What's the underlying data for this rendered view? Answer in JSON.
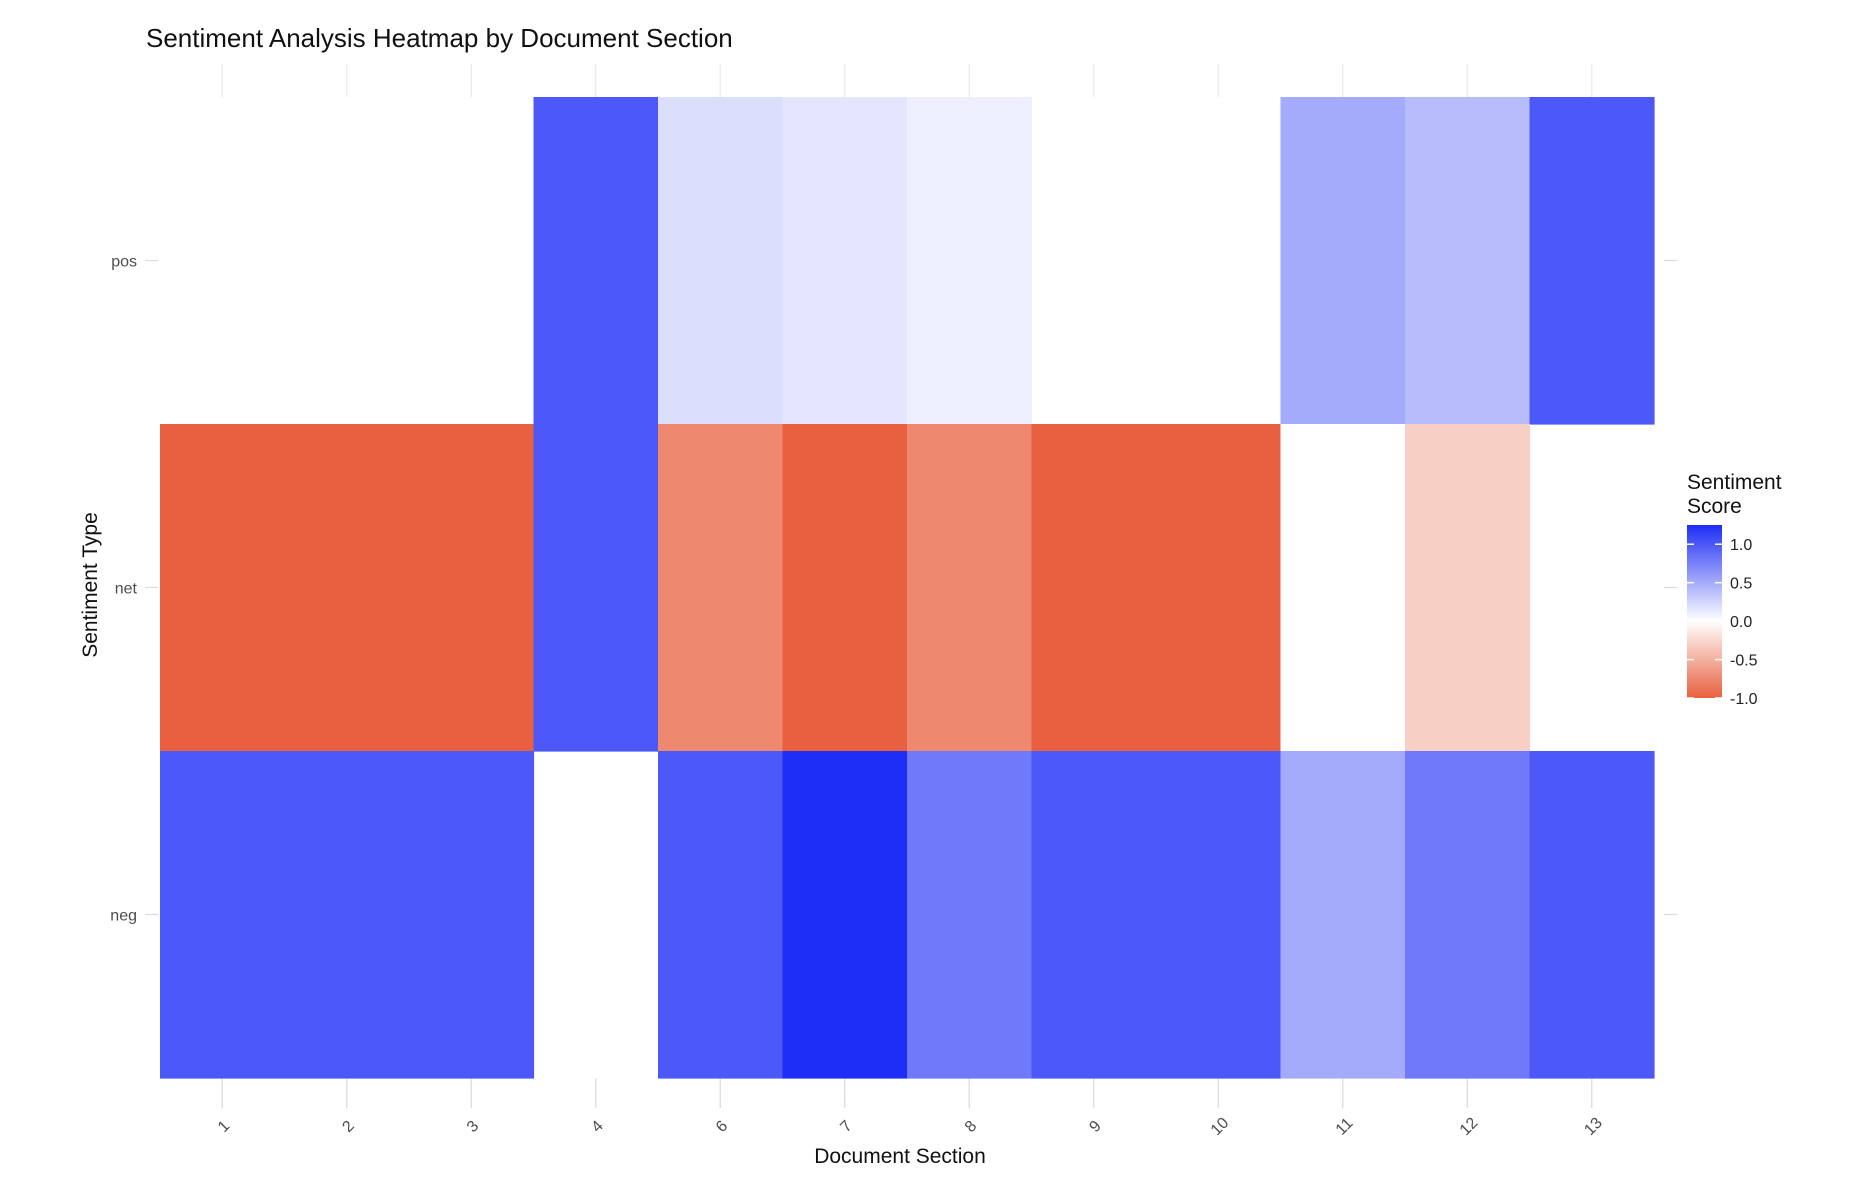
{
  "chart_data": {
    "type": "heatmap",
    "title": "Sentiment Analysis Heatmap by Document Section",
    "xlabel": "Document Section",
    "ylabel": "Sentiment Type",
    "x_categories": [
      "1",
      "2",
      "3",
      "4",
      "6",
      "7",
      "8",
      "9",
      "10",
      "11",
      "12",
      "13"
    ],
    "y_categories": [
      "pos",
      "net",
      "neg"
    ],
    "values": {
      "pos": [
        null,
        null,
        null,
        1.0,
        0.2,
        0.15,
        0.1,
        null,
        null,
        0.5,
        0.4,
        1.0
      ],
      "net": [
        -1.0,
        -1.0,
        -1.0,
        1.0,
        -0.75,
        -1.0,
        -0.75,
        -1.0,
        -1.0,
        0.0,
        -0.3,
        null
      ],
      "neg": [
        1.0,
        1.0,
        1.0,
        null,
        1.0,
        1.4,
        0.8,
        1.0,
        1.0,
        0.5,
        0.8,
        1.0
      ]
    },
    "legend": {
      "title_line1": "Sentiment",
      "title_line2": "Score",
      "ticks": [
        "1.0",
        "0.5",
        "0.0",
        "-0.5",
        "-1.0"
      ],
      "tick_values": [
        1.0,
        0.5,
        0.0,
        -0.5,
        -1.0
      ],
      "range": [
        -1.0,
        1.25
      ],
      "position": "right"
    },
    "colors": {
      "low": "#e8603f",
      "mid": "#ffffff",
      "high": "#1f2ef5",
      "grid": "#ebebeb"
    }
  }
}
